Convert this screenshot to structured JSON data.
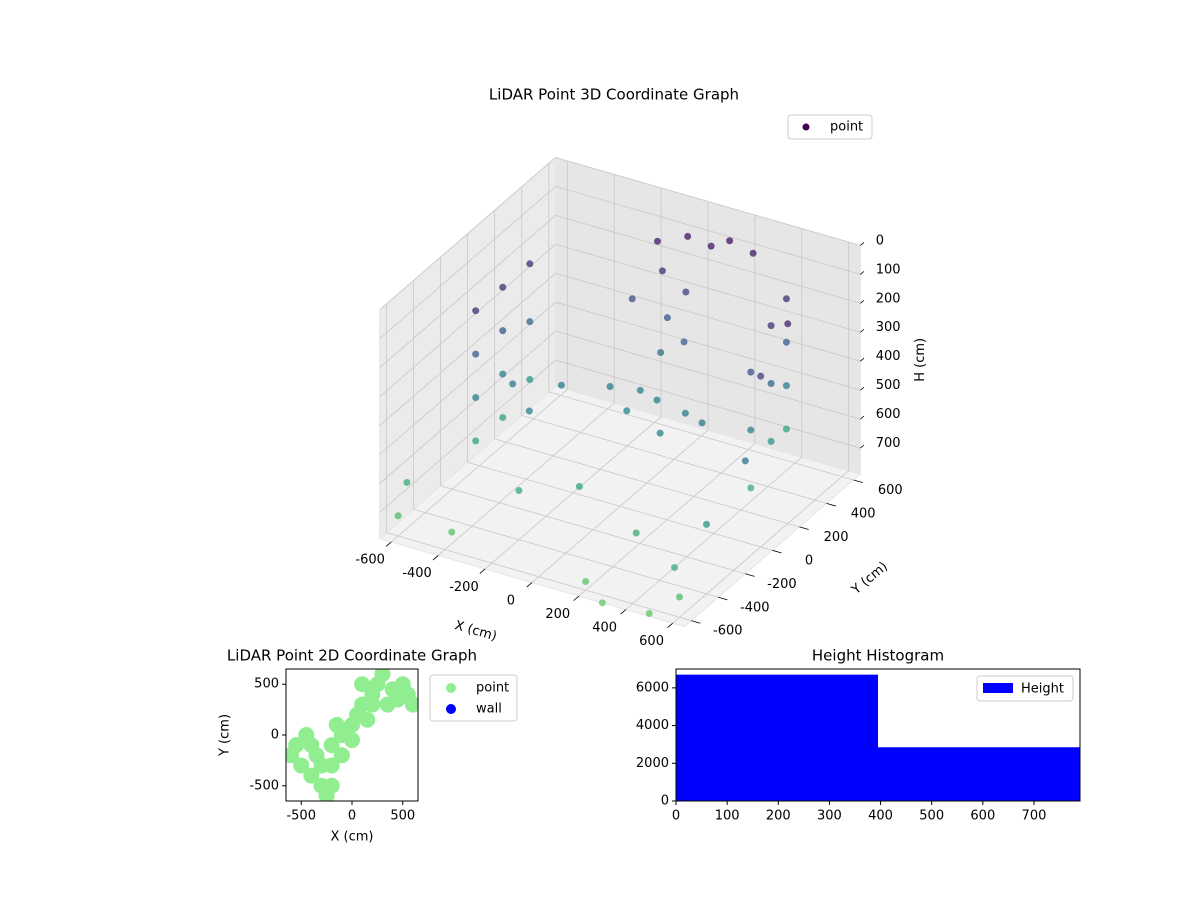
{
  "chart_data": [
    {
      "type": "scatter3d",
      "title": "LiDAR Point 3D Coordinate Graph",
      "xlabel": "X (cm)",
      "ylabel": "Y (cm)",
      "zlabel": "H (cm)",
      "xlim": [
        -650,
        650
      ],
      "ylim": [
        -650,
        650
      ],
      "zlim": [
        0,
        790
      ],
      "zinverted": true,
      "xticks": [
        -600,
        -400,
        -200,
        0,
        200,
        400,
        600
      ],
      "yticks": [
        -600,
        -400,
        -200,
        0,
        200,
        400,
        600
      ],
      "zticks": [
        0,
        100,
        200,
        300,
        400,
        500,
        600,
        700
      ],
      "colormap": [
        "#440154",
        "#3b528b",
        "#21918c",
        "#5ec962"
      ],
      "legend": "upper right",
      "grid": true,
      "series": [
        {
          "name": "point",
          "color": "#440154",
          "x": [
            -500,
            -500,
            -500,
            -500,
            -500,
            -500,
            -500,
            -500,
            -500,
            -500,
            -500,
            450,
            450,
            450,
            450,
            500,
            500,
            500,
            500,
            500,
            500,
            -400,
            -250,
            -100,
            0,
            100,
            250,
            350,
            -300,
            200,
            0,
            -100,
            0,
            100,
            -50,
            50,
            0,
            -150,
            100,
            0,
            150,
            250,
            600,
            600,
            650,
            600,
            550,
            600,
            500,
            -620,
            -600,
            -400,
            200,
            300,
            -200,
            0,
            300
          ],
          "y": [
            -200,
            -200,
            -200,
            -200,
            0,
            0,
            0,
            0,
            200,
            200,
            200,
            450,
            450,
            450,
            450,
            250,
            250,
            250,
            100,
            100,
            100,
            -100,
            0,
            100,
            150,
            100,
            50,
            0,
            -150,
            -50,
            50,
            450,
            500,
            500,
            400,
            400,
            350,
            350,
            300,
            300,
            550,
            550,
            200,
            0,
            -200,
            -400,
            -550,
            -600,
            -650,
            -500,
            -600,
            -550,
            -600,
            -650,
            -400,
            -300,
            -400
          ],
          "z": [
            150,
            300,
            450,
            600,
            150,
            300,
            450,
            600,
            150,
            350,
            550,
            150,
            300,
            450,
            600,
            150,
            350,
            550,
            250,
            450,
            650,
            420,
            430,
            440,
            450,
            440,
            430,
            420,
            470,
            470,
            480,
            80,
            60,
            70,
            150,
            200,
            280,
            250,
            320,
            380,
            60,
            80,
            100,
            200,
            400,
            550,
            650,
            720,
            780,
            650,
            720,
            750,
            760,
            790,
            620,
            600,
            650
          ]
        }
      ]
    },
    {
      "type": "scatter",
      "title": "LiDAR Point 2D Coordinate Graph",
      "xlabel": "X (cm)",
      "ylabel": "Y (cm)",
      "xlim": [
        -650,
        650
      ],
      "ylim": [
        -650,
        650
      ],
      "xticks": [
        -500,
        0,
        500
      ],
      "yticks": [
        -500,
        0,
        500
      ],
      "legend": "outside right",
      "series": [
        {
          "name": "point",
          "color": "#90ee90",
          "x": [
            -600,
            -550,
            -500,
            -450,
            -400,
            -350,
            -300,
            -250,
            -200,
            -200,
            -100,
            -150,
            0,
            50,
            100,
            150,
            200,
            250,
            300,
            350,
            400,
            450,
            500,
            550,
            600,
            -300,
            -100,
            0,
            200,
            -400,
            100,
            -200
          ],
          "y": [
            -200,
            -100,
            -300,
            0,
            -400,
            -200,
            -500,
            -600,
            -300,
            -100,
            0,
            100,
            100,
            200,
            300,
            150,
            400,
            500,
            600,
            300,
            450,
            350,
            500,
            400,
            300,
            -300,
            -200,
            -50,
            300,
            -100,
            500,
            -500
          ]
        },
        {
          "name": "wall",
          "color": "#0000ff",
          "x": [],
          "y": []
        }
      ]
    },
    {
      "type": "histogram",
      "title": "Height Histogram",
      "bins": [
        0,
        395,
        790
      ],
      "values": [
        6700,
        2850
      ],
      "series_name": "Height",
      "color": "#0000ff",
      "xlim": [
        0,
        790
      ],
      "ylim": [
        0,
        7000
      ],
      "xticks": [
        0,
        100,
        200,
        300,
        400,
        500,
        600,
        700
      ],
      "yticks": [
        0,
        2000,
        4000,
        6000
      ],
      "legend": "upper right"
    }
  ]
}
